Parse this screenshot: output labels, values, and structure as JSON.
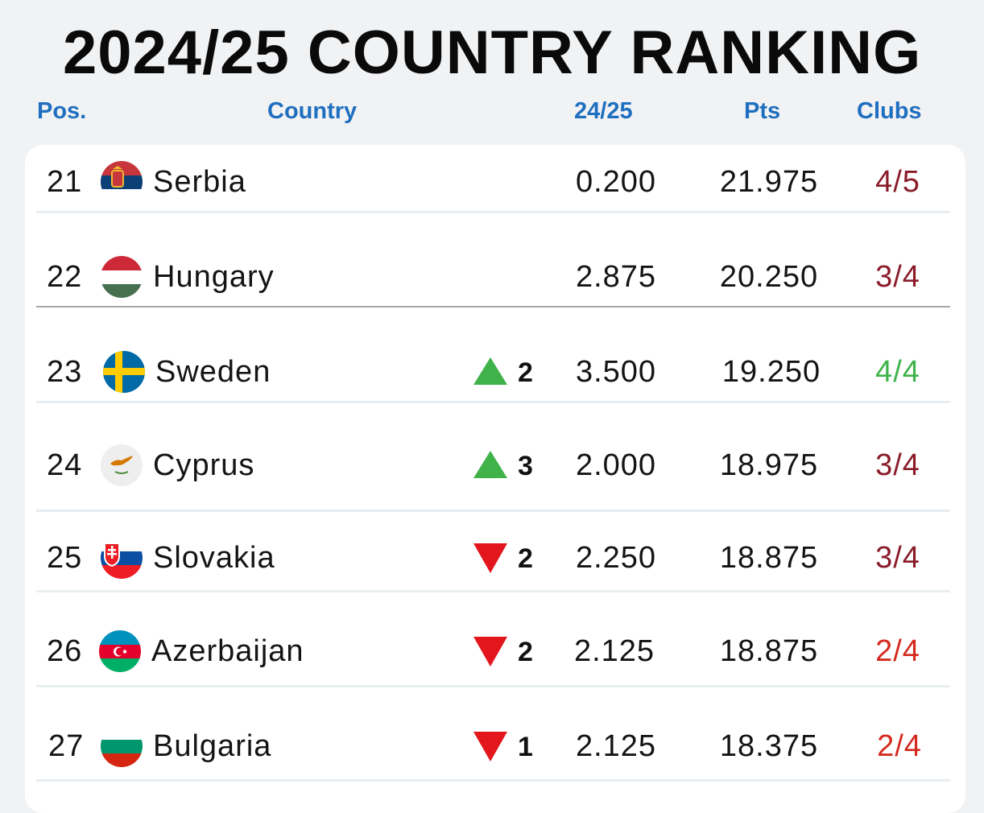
{
  "title": "2024/25 COUNTRY RANKING",
  "headers": {
    "pos": "Pos.",
    "country": "Country",
    "season": "24/25",
    "pts": "Pts",
    "clubs": "Clubs"
  },
  "rows": [
    {
      "pos": "21",
      "country": "Serbia",
      "flag": "serbia-flag-icon",
      "trend": "",
      "trend_value": "",
      "season": "0.200",
      "pts": "21.975",
      "clubs": "4/5",
      "clubs_color": "#8a1c2a"
    },
    {
      "pos": "22",
      "country": "Hungary",
      "flag": "hungary-flag-icon",
      "trend": "",
      "trend_value": "",
      "season": "2.875",
      "pts": "20.250",
      "clubs": "3/4",
      "clubs_color": "#8a1c2a"
    },
    {
      "pos": "23",
      "country": "Sweden",
      "flag": "sweden-flag-icon",
      "trend": "up",
      "trend_value": "2",
      "season": "3.500",
      "pts": "19.250",
      "clubs": "4/4",
      "clubs_color": "#3fb24a"
    },
    {
      "pos": "24",
      "country": "Cyprus",
      "flag": "cyprus-flag-icon",
      "trend": "up",
      "trend_value": "3",
      "season": "2.000",
      "pts": "18.975",
      "clubs": "3/4",
      "clubs_color": "#8a1c2a"
    },
    {
      "pos": "25",
      "country": "Slovakia",
      "flag": "slovakia-flag-icon",
      "trend": "down",
      "trend_value": "2",
      "season": "2.250",
      "pts": "18.875",
      "clubs": "3/4",
      "clubs_color": "#8a1c2a"
    },
    {
      "pos": "26",
      "country": "Azerbaijan",
      "flag": "azerbaijan-flag-icon",
      "trend": "down",
      "trend_value": "2",
      "season": "2.125",
      "pts": "18.875",
      "clubs": "2/4",
      "clubs_color": "#d42a1e"
    },
    {
      "pos": "27",
      "country": "Bulgaria",
      "flag": "bulgaria-flag-icon",
      "trend": "down",
      "trend_value": "1",
      "season": "2.125",
      "pts": "18.375",
      "clubs": "2/4",
      "clubs_color": "#d42a1e"
    }
  ],
  "colors": {
    "header": "#1f6fc0",
    "up": "#3fb24a",
    "down": "#e2161c"
  }
}
